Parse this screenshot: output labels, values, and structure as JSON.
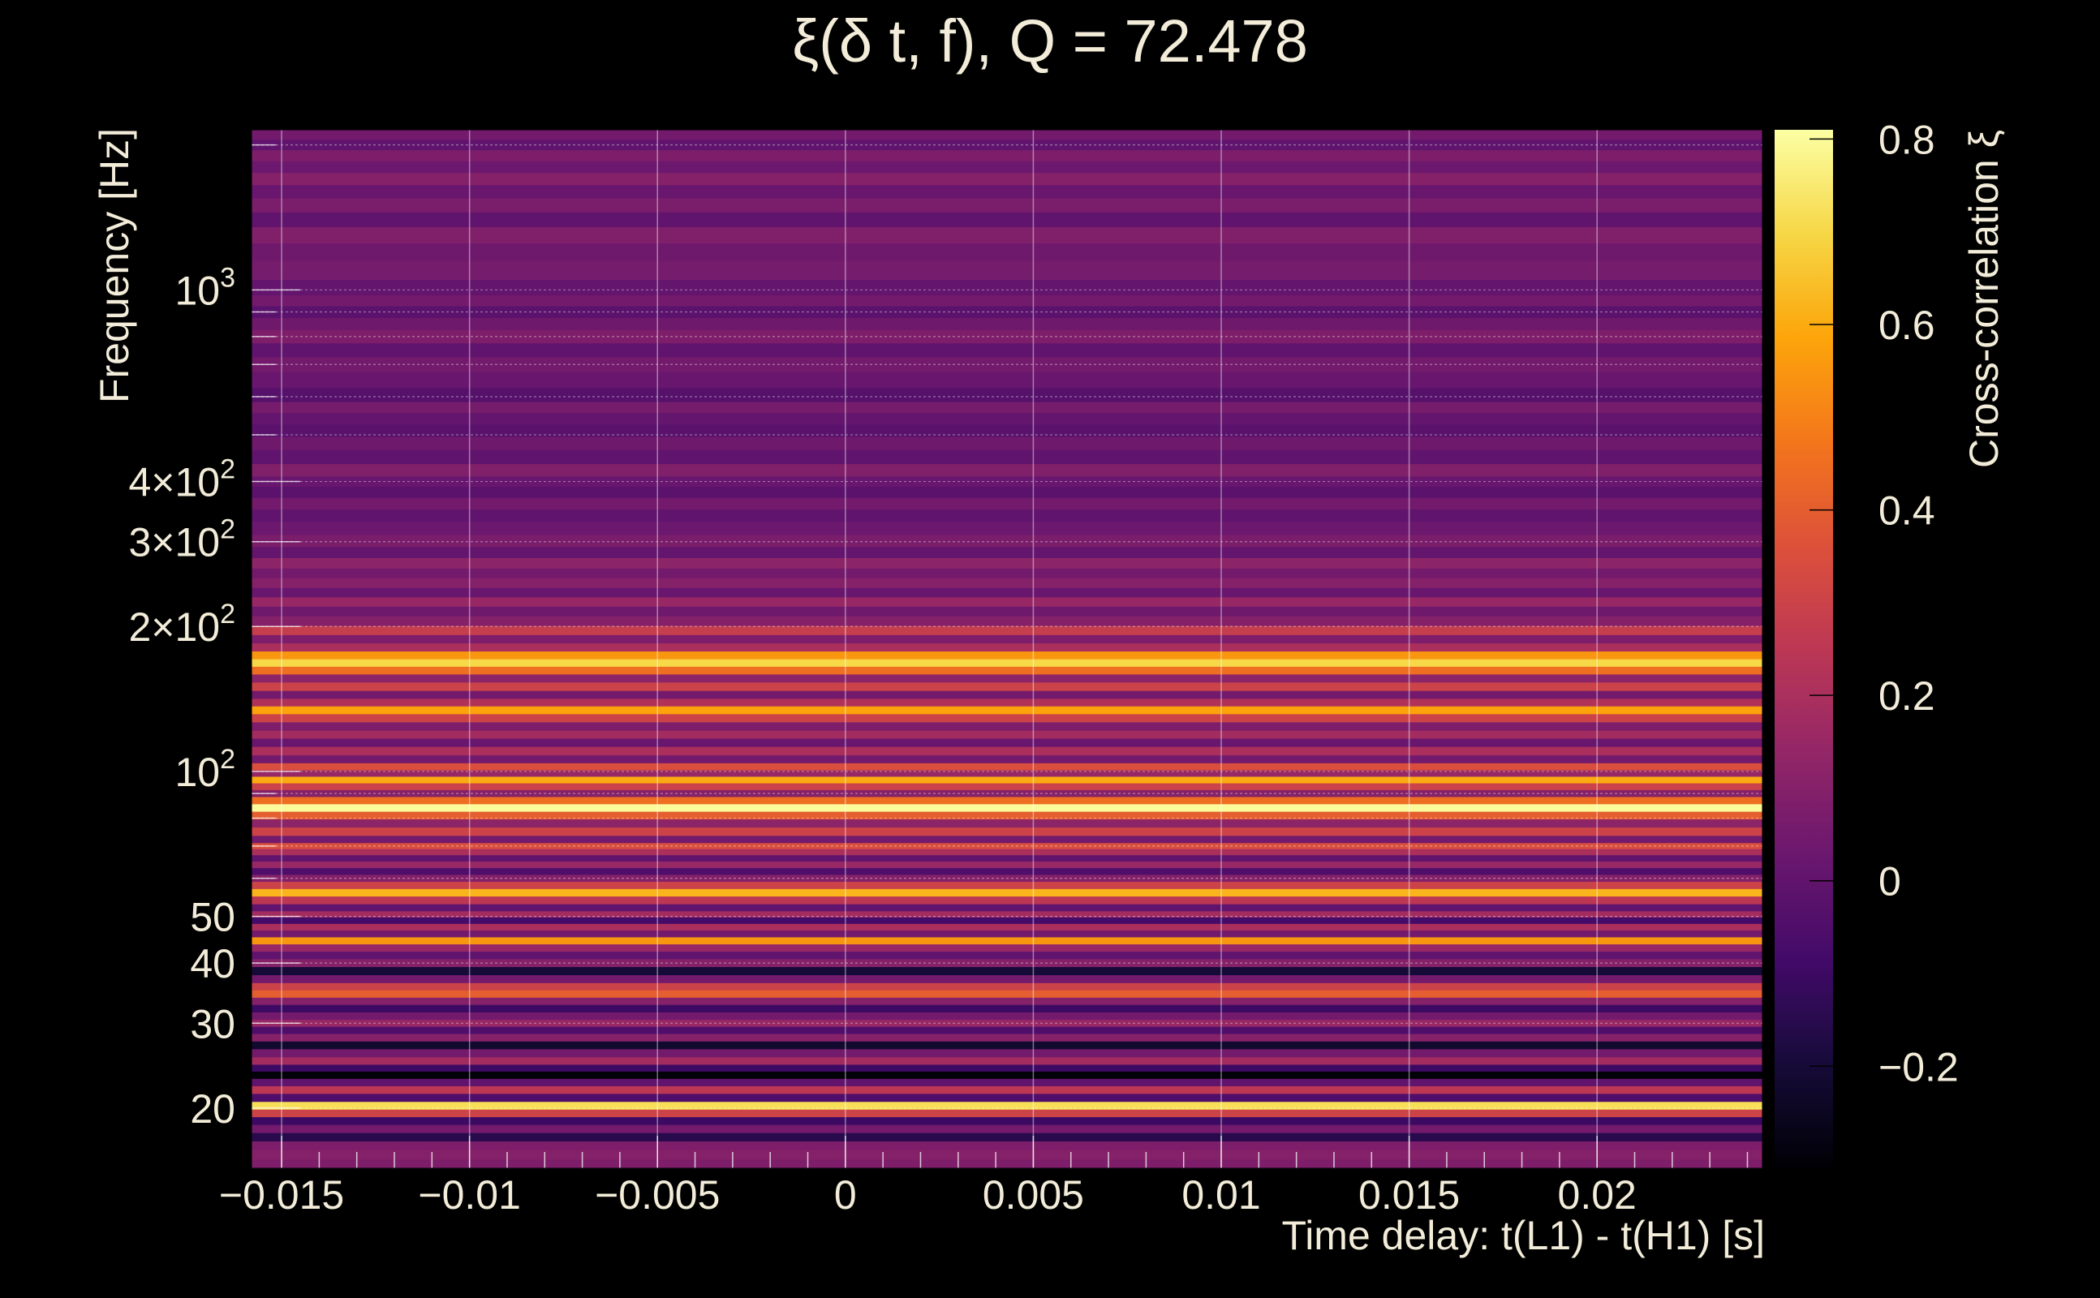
{
  "chart_data": {
    "type": "heatmap",
    "title": "ξ(δ t, f), Q = 72.478",
    "xlabel": "Time delay: t(L1) - t(H1) [s]",
    "ylabel": "Frequency [Hz]",
    "colorbar_label": "Cross-correlation ξ",
    "xlim": [
      -0.0158,
      0.0244
    ],
    "ylim": [
      15,
      2150
    ],
    "yscale": "log",
    "x_ticks": [
      -0.015,
      -0.01,
      -0.005,
      0,
      0.005,
      0.01,
      0.015,
      0.02
    ],
    "x_tick_labels": [
      "−0.015",
      "−0.01",
      "−0.005",
      "0",
      "0.005",
      "0.01",
      "0.015",
      "0.02"
    ],
    "y_ticks": [
      {
        "value": 20,
        "base": "20",
        "exp": ""
      },
      {
        "value": 30,
        "base": "30",
        "exp": ""
      },
      {
        "value": 40,
        "base": "40",
        "exp": ""
      },
      {
        "value": 50,
        "base": "50",
        "exp": ""
      },
      {
        "value": 100,
        "base": "10",
        "exp": "2"
      },
      {
        "value": 200,
        "base": "2×10",
        "exp": "2"
      },
      {
        "value": 300,
        "base": "3×10",
        "exp": "2"
      },
      {
        "value": 400,
        "base": "4×10",
        "exp": "2"
      },
      {
        "value": 1000,
        "base": "10",
        "exp": "3"
      }
    ],
    "colorbar_range": [
      -0.31,
      0.81
    ],
    "colorbar_ticks": [
      0.8,
      0.6,
      0.4,
      0.2,
      0,
      -0.2
    ],
    "colorbar_tick_labels": [
      "0.8",
      "0.6",
      "0.4",
      "0.2",
      "0",
      "−0.2"
    ],
    "colormap": "inferno",
    "grid": true,
    "frequency_bands": [
      {
        "f": 2100,
        "xi": 0.05
      },
      {
        "f": 2000,
        "xi": 0.0
      },
      {
        "f": 1900,
        "xi": 0.08
      },
      {
        "f": 1800,
        "xi": 0.03
      },
      {
        "f": 1700,
        "xi": 0.1
      },
      {
        "f": 1600,
        "xi": 0.02
      },
      {
        "f": 1500,
        "xi": 0.07
      },
      {
        "f": 1400,
        "xi": 0.0
      },
      {
        "f": 1300,
        "xi": 0.09
      },
      {
        "f": 1200,
        "xi": 0.04
      },
      {
        "f": 1100,
        "xi": 0.06
      },
      {
        "f": 1000,
        "xi": 0.01
      },
      {
        "f": 950,
        "xi": 0.05
      },
      {
        "f": 900,
        "xi": -0.02
      },
      {
        "f": 850,
        "xi": 0.04
      },
      {
        "f": 800,
        "xi": 0.08
      },
      {
        "f": 750,
        "xi": 0.0
      },
      {
        "f": 700,
        "xi": 0.05
      },
      {
        "f": 650,
        "xi": 0.02
      },
      {
        "f": 600,
        "xi": -0.03
      },
      {
        "f": 570,
        "xi": 0.06
      },
      {
        "f": 540,
        "xi": 0.01
      },
      {
        "f": 510,
        "xi": -0.02
      },
      {
        "f": 480,
        "xi": 0.04
      },
      {
        "f": 450,
        "xi": 0.0
      },
      {
        "f": 420,
        "xi": 0.09
      },
      {
        "f": 400,
        "xi": 0.02
      },
      {
        "f": 380,
        "xi": -0.02
      },
      {
        "f": 360,
        "xi": 0.05
      },
      {
        "f": 340,
        "xi": 0.0
      },
      {
        "f": 320,
        "xi": 0.03
      },
      {
        "f": 300,
        "xi": 0.07
      },
      {
        "f": 285,
        "xi": 0.01
      },
      {
        "f": 270,
        "xi": 0.12
      },
      {
        "f": 258,
        "xi": 0.05
      },
      {
        "f": 246,
        "xi": 0.1
      },
      {
        "f": 235,
        "xi": 0.02
      },
      {
        "f": 225,
        "xi": 0.15
      },
      {
        "f": 215,
        "xi": 0.04
      },
      {
        "f": 205,
        "xi": 0.1
      },
      {
        "f": 196,
        "xi": 0.28
      },
      {
        "f": 188,
        "xi": 0.08
      },
      {
        "f": 181,
        "xi": 0.2
      },
      {
        "f": 174,
        "xi": 0.55
      },
      {
        "f": 168,
        "xi": 0.7
      },
      {
        "f": 162,
        "xi": 0.45
      },
      {
        "f": 156,
        "xi": 0.12
      },
      {
        "f": 150,
        "xi": 0.3
      },
      {
        "f": 144,
        "xi": 0.05
      },
      {
        "f": 139,
        "xi": 0.22
      },
      {
        "f": 134,
        "xi": 0.58
      },
      {
        "f": 129,
        "xi": 0.3
      },
      {
        "f": 124,
        "xi": 0.08
      },
      {
        "f": 119,
        "xi": 0.18
      },
      {
        "f": 115,
        "xi": 0.02
      },
      {
        "f": 110,
        "xi": 0.2
      },
      {
        "f": 106,
        "xi": 0.05
      },
      {
        "f": 102,
        "xi": 0.35
      },
      {
        "f": 99,
        "xi": 0.15
      },
      {
        "f": 96,
        "xi": 0.6
      },
      {
        "f": 93,
        "xi": 0.3
      },
      {
        "f": 90,
        "xi": 0.1
      },
      {
        "f": 87,
        "xi": 0.45
      },
      {
        "f": 84,
        "xi": 0.8
      },
      {
        "f": 81,
        "xi": 0.4
      },
      {
        "f": 78,
        "xi": 0.12
      },
      {
        "f": 75,
        "xi": 0.3
      },
      {
        "f": 72,
        "xi": 0.05
      },
      {
        "f": 70,
        "xi": 0.35
      },
      {
        "f": 68,
        "xi": 0.2
      },
      {
        "f": 66,
        "xi": 0.0
      },
      {
        "f": 64,
        "xi": 0.15
      },
      {
        "f": 62,
        "xi": -0.05
      },
      {
        "f": 60,
        "xi": 0.1
      },
      {
        "f": 58,
        "xi": 0.3
      },
      {
        "f": 56,
        "xi": 0.62
      },
      {
        "f": 54,
        "xi": 0.25
      },
      {
        "f": 52,
        "xi": 0.0
      },
      {
        "f": 50.5,
        "xi": 0.18
      },
      {
        "f": 49,
        "xi": -0.08
      },
      {
        "f": 47.5,
        "xi": 0.2
      },
      {
        "f": 46,
        "xi": 0.05
      },
      {
        "f": 44.5,
        "xi": 0.55
      },
      {
        "f": 43,
        "xi": 0.15
      },
      {
        "f": 41.5,
        "xi": 0.0
      },
      {
        "f": 40,
        "xi": 0.1
      },
      {
        "f": 38.5,
        "xi": -0.2
      },
      {
        "f": 37,
        "xi": 0.05
      },
      {
        "f": 35.7,
        "xi": 0.3
      },
      {
        "f": 34.5,
        "xi": 0.4
      },
      {
        "f": 33.3,
        "xi": 0.1
      },
      {
        "f": 32.2,
        "xi": -0.1
      },
      {
        "f": 31,
        "xi": 0.05
      },
      {
        "f": 30,
        "xi": 0.15
      },
      {
        "f": 29,
        "xi": -0.05
      },
      {
        "f": 28,
        "xi": 0.1
      },
      {
        "f": 27,
        "xi": -0.22
      },
      {
        "f": 26,
        "xi": 0.05
      },
      {
        "f": 25,
        "xi": 0.18
      },
      {
        "f": 24.2,
        "xi": -0.1
      },
      {
        "f": 23.4,
        "xi": -0.3
      },
      {
        "f": 22.6,
        "xi": 0.0
      },
      {
        "f": 21.8,
        "xi": 0.25
      },
      {
        "f": 21,
        "xi": -0.05
      },
      {
        "f": 20.2,
        "xi": 0.72
      },
      {
        "f": 19.5,
        "xi": 0.3
      },
      {
        "f": 18.8,
        "xi": -0.1
      },
      {
        "f": 18.1,
        "xi": 0.05
      },
      {
        "f": 17.4,
        "xi": -0.15
      },
      {
        "f": 16.7,
        "xi": 0.08
      },
      {
        "f": 16,
        "xi": 0.1
      },
      {
        "f": 15.3,
        "xi": 0.08
      }
    ]
  }
}
